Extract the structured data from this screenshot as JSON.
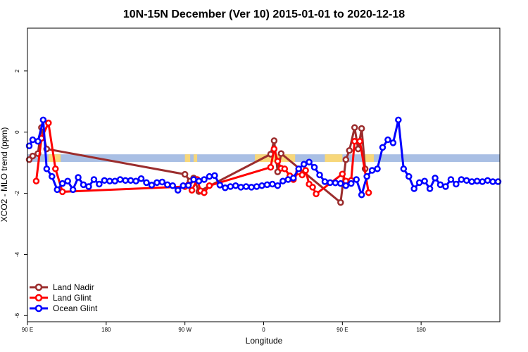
{
  "chart_data": {
    "type": "line",
    "title": "10N-15N December (Ver 10)   2015-01-01 to 2020-12-18",
    "xlabel": "Longitude",
    "ylabel": "XCO2 - MLO trend (ppm)",
    "xlim": [
      -90,
      180
    ],
    "ylim": [
      -6.2,
      3.4
    ],
    "x_ticks": [
      {
        "value": -90,
        "label": "90 E"
      },
      {
        "value": -45,
        "label": "180"
      },
      {
        "value": 0,
        "label": "90 W"
      },
      {
        "value": 45,
        "label": "0"
      },
      {
        "value": 90,
        "label": "90 E"
      },
      {
        "value": 135,
        "label": "180"
      }
    ],
    "y_ticks": [
      {
        "value": -6,
        "label": "-6"
      },
      {
        "value": -4,
        "label": "-4"
      },
      {
        "value": -2,
        "label": "-2"
      },
      {
        "value": 0,
        "label": "0"
      },
      {
        "value": 2,
        "label": "2"
      }
    ],
    "land_band": {
      "y_center": -0.85,
      "height": 0.25,
      "colors": {
        "ocean": "#a9bfe4",
        "land": "#f7d77a"
      }
    },
    "land_segments": [
      [
        -78,
        -71
      ],
      [
        0,
        3
      ],
      [
        5,
        7
      ],
      [
        40,
        63
      ],
      [
        80,
        90
      ],
      [
        103,
        108
      ]
    ],
    "legend_position": "bottom-left",
    "series": [
      {
        "name": "Land Nadir",
        "color": "#9b2d2d",
        "x": [
          -89,
          -87,
          -84,
          -82,
          -79,
          0,
          3,
          5,
          8,
          49,
          51,
          53,
          55,
          89,
          92,
          94,
          97,
          99,
          101,
          103
        ],
        "y": [
          -0.9,
          -0.78,
          -0.7,
          0.15,
          -0.55,
          -1.38,
          -1.6,
          -1.5,
          -1.94,
          -0.72,
          -0.28,
          -1.3,
          -0.7,
          -2.3,
          -0.9,
          -0.6,
          0.15,
          -0.55,
          0.12,
          -1.2
        ]
      },
      {
        "name": "Land Glint",
        "color": "#ff0000",
        "x": [
          -85,
          -82,
          -78,
          -74,
          -70,
          0,
          2,
          4,
          7,
          9,
          11,
          14,
          49,
          51,
          53,
          55,
          57,
          60,
          62,
          65,
          67,
          69,
          71,
          73,
          75,
          90,
          92,
          95,
          97,
          100,
          105
        ],
        "y": [
          -1.6,
          -0.2,
          0.3,
          -1.2,
          -1.95,
          -1.78,
          -1.72,
          -1.9,
          -1.55,
          -1.92,
          -1.98,
          -1.75,
          -1.15,
          -0.55,
          -0.95,
          -1.18,
          -1.2,
          -1.43,
          -1.55,
          -1.3,
          -1.4,
          -1.25,
          -1.7,
          -1.8,
          -2.02,
          -1.37,
          -1.6,
          -1.58,
          -0.3,
          -0.3,
          -1.98
        ]
      },
      {
        "name": "Ocean Glint",
        "color": "#0000ff",
        "x": [
          -89,
          -87,
          -84,
          -81,
          -79,
          -76,
          -73,
          -70,
          -67,
          -64,
          -61,
          -58,
          -55,
          -52,
          -49,
          -46,
          -43,
          -40,
          -37,
          -34,
          -31,
          -28,
          -25,
          -22,
          -19,
          -16,
          -13,
          -10,
          -7,
          -4,
          -1,
          2,
          5,
          8,
          11,
          14,
          17,
          20,
          23,
          26,
          29,
          32,
          35,
          38,
          41,
          44,
          47,
          50,
          53,
          56,
          59,
          62,
          65,
          68,
          71,
          74,
          77,
          80,
          83,
          86,
          89,
          92,
          95,
          98,
          101,
          104,
          107,
          110,
          113,
          116,
          119,
          122,
          125,
          128,
          131,
          134,
          137,
          140,
          143,
          146,
          149,
          152,
          155,
          158,
          161,
          164,
          167,
          170,
          173,
          176,
          179
        ],
        "y": [
          -0.45,
          -0.25,
          -0.3,
          0.4,
          -1.2,
          -1.45,
          -1.88,
          -1.68,
          -1.6,
          -1.88,
          -1.48,
          -1.72,
          -1.78,
          -1.55,
          -1.7,
          -1.58,
          -1.6,
          -1.6,
          -1.55,
          -1.58,
          -1.58,
          -1.6,
          -1.52,
          -1.65,
          -1.73,
          -1.65,
          -1.63,
          -1.72,
          -1.75,
          -1.9,
          -1.75,
          -1.74,
          -1.55,
          -1.6,
          -1.55,
          -1.45,
          -1.42,
          -1.73,
          -1.82,
          -1.78,
          -1.75,
          -1.8,
          -1.78,
          -1.8,
          -1.78,
          -1.75,
          -1.72,
          -1.7,
          -1.75,
          -1.6,
          -1.55,
          -1.5,
          -1.2,
          -1.05,
          -0.98,
          -1.15,
          -1.4,
          -1.62,
          -1.65,
          -1.66,
          -1.68,
          -1.75,
          -1.68,
          -1.55,
          -2.05,
          -1.45,
          -1.25,
          -1.2,
          -0.5,
          -0.25,
          -0.35,
          0.4,
          -1.2,
          -1.45,
          -1.85,
          -1.65,
          -1.6,
          -1.85,
          -1.5,
          -1.72,
          -1.78,
          -1.55,
          -1.7,
          -1.55,
          -1.58,
          -1.62,
          -1.6,
          -1.62,
          -1.58,
          -1.62,
          -1.62
        ]
      }
    ]
  }
}
